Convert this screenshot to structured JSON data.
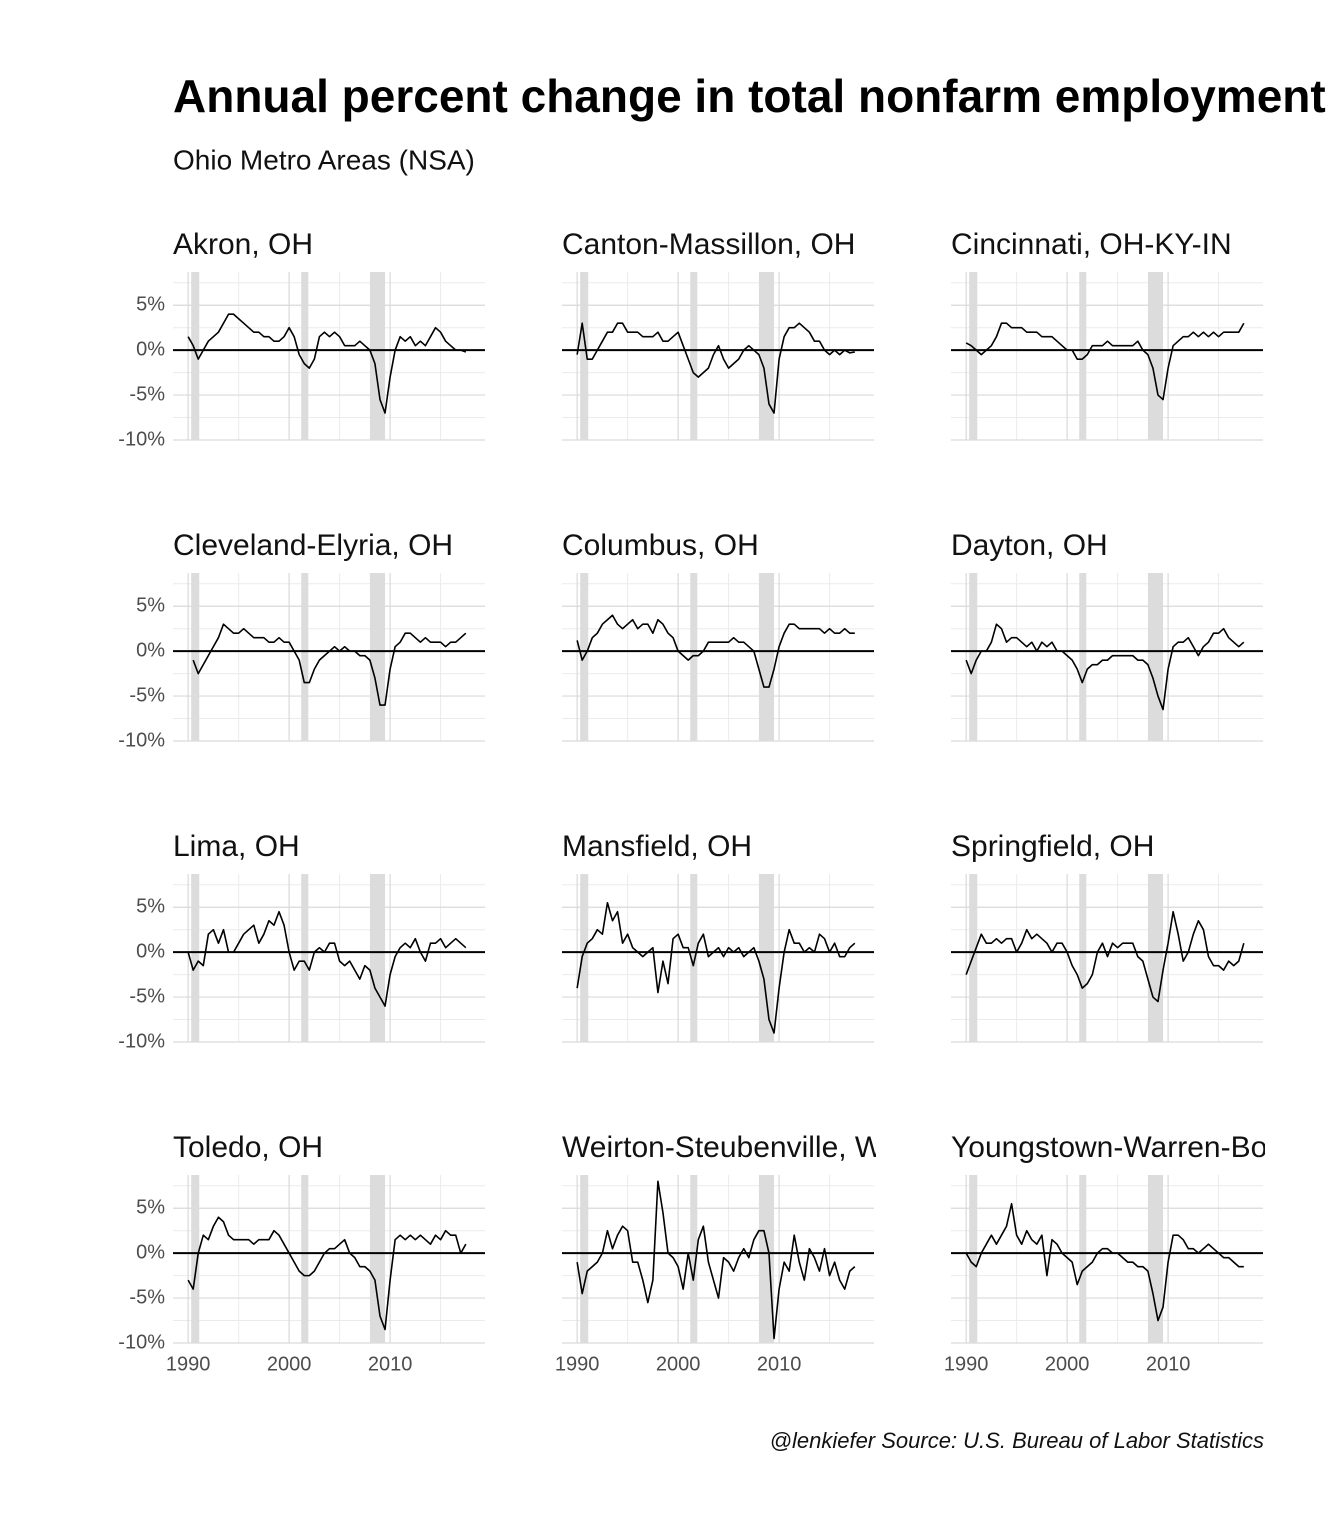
{
  "chart_data": {
    "type": "line",
    "title": "Annual percent change in total nonfarm employment",
    "subtitle": "Ohio Metro Areas (NSA)",
    "caption": "@lenkiefer Source: U.S. Bureau of Labor Statistics",
    "facet": true,
    "grid": true,
    "x": [
      1990,
      1990.5,
      1991,
      1991.5,
      1992,
      1992.5,
      1993,
      1993.5,
      1994,
      1994.5,
      1995,
      1995.5,
      1996,
      1996.5,
      1997,
      1997.5,
      1998,
      1998.5,
      1999,
      1999.5,
      2000,
      2000.5,
      2001,
      2001.5,
      2002,
      2002.5,
      2003,
      2003.5,
      2004,
      2004.5,
      2005,
      2005.5,
      2006,
      2006.5,
      2007,
      2007.5,
      2008,
      2008.5,
      2009,
      2009.5,
      2010,
      2010.5,
      2011,
      2011.5,
      2012,
      2012.5,
      2013,
      2013.5,
      2014,
      2014.5,
      2015,
      2015.5,
      2016,
      2016.5,
      2017,
      2017.5
    ],
    "xlim": [
      1988.5,
      2019.4
    ],
    "ylim": [
      -10,
      8.7
    ],
    "xticks": [
      1990,
      2000,
      2010
    ],
    "x_minor_ticks": [
      1995,
      2005,
      2015
    ],
    "yticks": [
      {
        "value": 5,
        "label": "5%"
      },
      {
        "value": 0,
        "label": "0%"
      },
      {
        "value": -5,
        "label": "-5%"
      },
      {
        "value": -10,
        "label": "-10%"
      }
    ],
    "y_minor_ticks": [
      7.5,
      2.5,
      -2.5,
      -7.5
    ],
    "hline": 0,
    "shaded": [
      [
        1990.3,
        1991.1
      ],
      [
        2001.2,
        2001.9
      ],
      [
        2008.0,
        2009.5
      ]
    ],
    "shade_color": "#dcdcdc",
    "series": [
      {
        "name": "Akron, OH",
        "color": "#000000",
        "values": [
          1.5,
          0.5,
          -1,
          0,
          1,
          1.5,
          2,
          3,
          4,
          4,
          3.5,
          3,
          2.5,
          2,
          2,
          1.5,
          1.5,
          1,
          1,
          1.5,
          2.5,
          1.5,
          -0.5,
          -1.5,
          -2,
          -1,
          1.5,
          2,
          1.5,
          2,
          1.5,
          0.5,
          0.5,
          0.5,
          1,
          0.5,
          0,
          -1.5,
          -5.5,
          -7,
          -3,
          0,
          1.5,
          1,
          1.5,
          0.5,
          1,
          0.5,
          1.5,
          2.5,
          2,
          1,
          0.5,
          0,
          0,
          -0.2
        ]
      },
      {
        "name": "Canton-Massillon, OH",
        "color": "#000000",
        "values": [
          -0.5,
          3,
          -1,
          -1,
          0,
          1,
          2,
          2,
          3,
          3,
          2,
          2,
          2,
          1.5,
          1.5,
          1.5,
          2,
          1,
          1,
          1.5,
          2,
          0.5,
          -1,
          -2.5,
          -3,
          -2.5,
          -2,
          -0.5,
          0.5,
          -1,
          -2,
          -1.5,
          -1,
          0,
          0.5,
          0,
          -0.5,
          -2,
          -6,
          -7,
          -1,
          1.5,
          2.5,
          2.5,
          3,
          2.5,
          2,
          1,
          1,
          0,
          -0.5,
          0,
          -0.5,
          0,
          -0.3,
          -0.2
        ]
      },
      {
        "name": "Cincinnati, OH-KY-IN",
        "color": "#000000",
        "values": [
          0.8,
          0.5,
          0,
          -0.5,
          0,
          0.5,
          1.5,
          3,
          3,
          2.5,
          2.5,
          2.5,
          2,
          2,
          2,
          1.5,
          1.5,
          1.5,
          1,
          0.5,
          0,
          0,
          -1,
          -1,
          -0.5,
          0.5,
          0.5,
          0.5,
          1,
          0.5,
          0.5,
          0.5,
          0.5,
          0.5,
          1,
          0,
          -0.5,
          -2,
          -5,
          -5.5,
          -2,
          0.5,
          1,
          1.5,
          1.5,
          2,
          1.5,
          2,
          1.5,
          2,
          1.5,
          2,
          2,
          2,
          2,
          3
        ]
      },
      {
        "name": "Cleveland-Elyria, OH",
        "color": "#000000",
        "values": [
          null,
          -1,
          -2.5,
          -1.5,
          -0.5,
          0.5,
          1.5,
          3,
          2.5,
          2,
          2,
          2.5,
          2,
          1.5,
          1.5,
          1.5,
          1,
          1,
          1.5,
          1,
          1,
          0,
          -1,
          -3.5,
          -3.5,
          -2,
          -1,
          -0.5,
          0,
          0.5,
          0,
          0.5,
          0,
          0,
          -0.5,
          -0.5,
          -1,
          -3,
          -6,
          -6,
          -2,
          0.5,
          1,
          2,
          2,
          1.5,
          1,
          1.5,
          1,
          1,
          1,
          0.5,
          1,
          1,
          1.5,
          2
        ]
      },
      {
        "name": "Columbus, OH",
        "color": "#000000",
        "values": [
          1.2,
          -1,
          0,
          1.5,
          2,
          3,
          3.5,
          4,
          3,
          2.5,
          3,
          3.5,
          2.5,
          3,
          3,
          2,
          3.5,
          3,
          2,
          1.5,
          0,
          -0.5,
          -1,
          -0.5,
          -0.5,
          0,
          1,
          1,
          1,
          1,
          1,
          1.5,
          1,
          1,
          0.5,
          0,
          -2,
          -4,
          -4,
          -2,
          0.5,
          2,
          3,
          3,
          2.5,
          2.5,
          2.5,
          2.5,
          2.5,
          2,
          2.5,
          2,
          2,
          2.5,
          2,
          2
        ]
      },
      {
        "name": "Dayton, OH",
        "color": "#000000",
        "values": [
          -1,
          -2.5,
          -1,
          0,
          0,
          1,
          3,
          2.5,
          1,
          1.5,
          1.5,
          1,
          0.5,
          1,
          0,
          1,
          0.5,
          1,
          0,
          0,
          -0.5,
          -1,
          -2,
          -3.5,
          -2,
          -1.5,
          -1.5,
          -1,
          -1,
          -0.5,
          -0.5,
          -0.5,
          -0.5,
          -0.5,
          -1,
          -1,
          -1.5,
          -3,
          -5,
          -6.5,
          -2,
          0.5,
          1,
          1,
          1.5,
          0.5,
          -0.5,
          0.5,
          1,
          2,
          2,
          2.5,
          1.5,
          1,
          0.5,
          1
        ]
      },
      {
        "name": "Lima, OH",
        "color": "#000000",
        "values": [
          0,
          -2,
          -1,
          -1.5,
          2,
          2.5,
          1,
          2.5,
          0,
          0,
          1,
          2,
          2.5,
          3,
          1,
          2,
          3.5,
          3,
          4.5,
          3,
          0,
          -2,
          -1,
          -1,
          -2,
          0,
          0.5,
          0,
          1,
          1,
          -1,
          -1.5,
          -1,
          -2,
          -3,
          -1.5,
          -2,
          -4,
          -5,
          -6,
          -2.5,
          -0.5,
          0.5,
          1,
          0.5,
          1.5,
          0,
          -1,
          1,
          1,
          1.5,
          0.5,
          1,
          1.5,
          1,
          0.5
        ]
      },
      {
        "name": "Mansfield, OH",
        "color": "#000000",
        "values": [
          -4,
          -0.5,
          1,
          1.5,
          2.5,
          2,
          5.5,
          3.5,
          4.5,
          1,
          2,
          0.5,
          0,
          -0.5,
          0,
          0.5,
          -4.5,
          -1,
          -3.5,
          1.5,
          2,
          0.5,
          0.5,
          -1.5,
          1,
          2,
          -0.5,
          0,
          0.5,
          -0.5,
          0.5,
          0,
          0.5,
          -0.5,
          0,
          0.5,
          -1,
          -3,
          -7.5,
          -9,
          -4,
          0,
          2.5,
          1,
          1,
          0,
          0.5,
          0,
          2,
          1.5,
          0,
          1,
          -0.5,
          -0.5,
          0.5,
          1
        ]
      },
      {
        "name": "Springfield, OH",
        "color": "#000000",
        "values": [
          -2.5,
          -1,
          0.5,
          2,
          1,
          1,
          1.5,
          1,
          1.5,
          1.5,
          0,
          1,
          2.5,
          1.5,
          2,
          1.5,
          1,
          0,
          1,
          1,
          0,
          -1.5,
          -2.5,
          -4,
          -3.5,
          -2.5,
          0,
          1,
          -0.5,
          1,
          0.5,
          1,
          1,
          1,
          -0.5,
          -1,
          -3,
          -5,
          -5.5,
          -2,
          1,
          4.5,
          2,
          -1,
          0,
          2,
          3.5,
          2.5,
          -0.5,
          -1.5,
          -1.5,
          -2,
          -1,
          -1.5,
          -1,
          1
        ]
      },
      {
        "name": "Toledo, OH",
        "color": "#000000",
        "values": [
          -3,
          -4,
          0,
          2,
          1.5,
          3,
          4,
          3.5,
          2,
          1.5,
          1.5,
          1.5,
          1.5,
          1,
          1.5,
          1.5,
          1.5,
          2.5,
          2,
          1,
          0,
          -1,
          -2,
          -2.5,
          -2.5,
          -2,
          -1,
          0,
          0.5,
          0.5,
          1,
          1.5,
          0,
          -0.5,
          -1.5,
          -1.5,
          -2,
          -3,
          -7,
          -8.5,
          -3,
          1.5,
          2,
          1.5,
          2,
          1.5,
          2,
          1.5,
          1,
          2,
          1.5,
          2.5,
          2,
          2,
          0,
          1
        ]
      },
      {
        "name": "Weirton-Steubenville, WV-OH",
        "color": "#000000",
        "values": [
          -1,
          -4.5,
          -2,
          -1.5,
          -1,
          0,
          2.5,
          0.5,
          2,
          3,
          2.5,
          -1,
          -1,
          -3,
          -5.5,
          -3,
          8,
          4.5,
          0,
          -0.5,
          -1.5,
          -4,
          0,
          -3,
          1.5,
          3,
          -1,
          -3,
          -5,
          -0.5,
          -1,
          -2,
          -0.5,
          0.5,
          -0.5,
          1.5,
          2.5,
          2.5,
          0,
          -9.5,
          -4,
          -1,
          -2,
          2,
          -1,
          -3,
          0.5,
          -0.5,
          -2,
          0.5,
          -2.5,
          -1,
          -3,
          -4,
          -2,
          -1.5
        ]
      },
      {
        "name": "Youngstown-Warren-Boardman, OH-PA",
        "color": "#000000",
        "values": [
          0,
          -1,
          -1.5,
          0,
          1,
          2,
          1,
          2,
          3,
          5.5,
          2,
          1,
          2.5,
          1.5,
          1,
          2,
          -2.5,
          1.5,
          1,
          0,
          -0.5,
          -1,
          -3.5,
          -2,
          -1.5,
          -1,
          0,
          0.5,
          0.5,
          0,
          0,
          -0.5,
          -1,
          -1,
          -1.5,
          -1.5,
          -2,
          -4.5,
          -7.5,
          -6,
          -1,
          2,
          2,
          1.5,
          0.5,
          0.5,
          0,
          0.5,
          1,
          0.5,
          0,
          -0.5,
          -0.5,
          -1,
          -1.5,
          -1.5
        ]
      }
    ]
  }
}
